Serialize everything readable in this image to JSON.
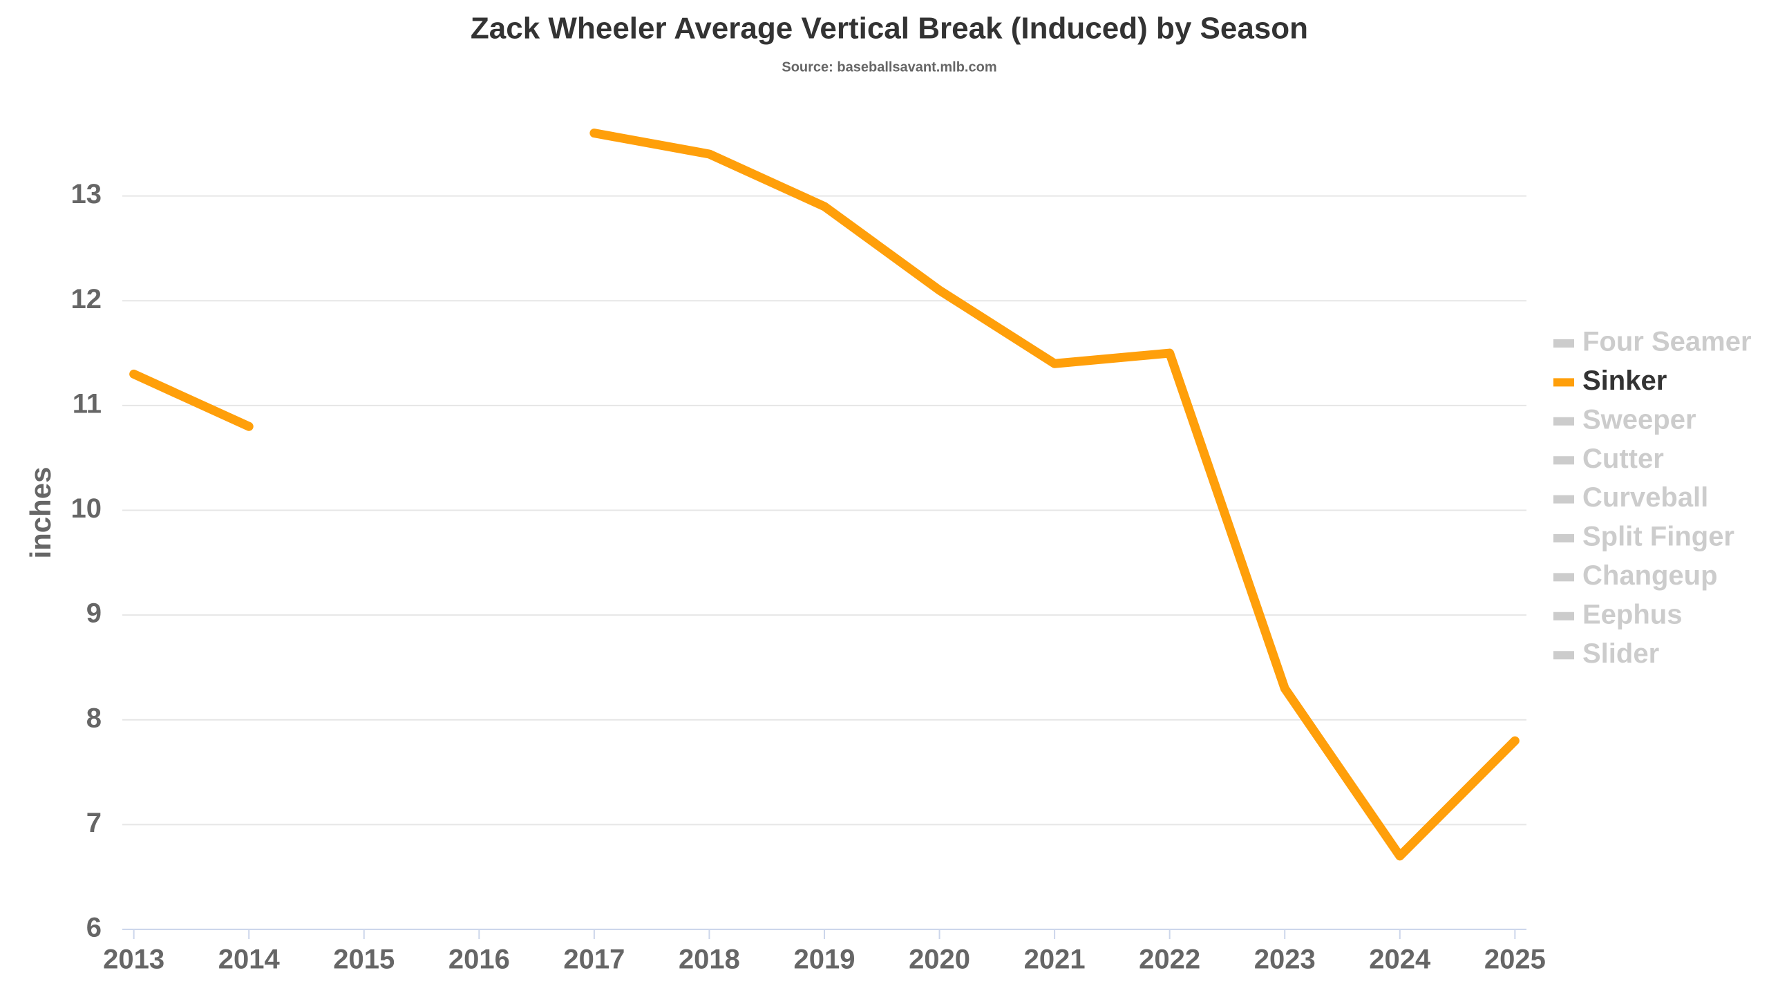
{
  "chart_data": {
    "type": "line",
    "title": "Zack Wheeler Average Vertical Break (Induced) by Season",
    "subtitle": "Source: baseballsavant.mlb.com",
    "y_label": "inches",
    "x": [
      2013,
      2014,
      2015,
      2016,
      2017,
      2018,
      2019,
      2020,
      2021,
      2022,
      2023,
      2024,
      2025
    ],
    "xlim": [
      2012.9,
      2025.1
    ],
    "xticks": [
      2013,
      2014,
      2015,
      2016,
      2017,
      2018,
      2019,
      2020,
      2021,
      2022,
      2023,
      2024,
      2025
    ],
    "ylim": [
      6,
      14
    ],
    "yticks": [
      6,
      7,
      8,
      9,
      10,
      11,
      12,
      13
    ],
    "grid": true,
    "legend": "right",
    "hidden_color": "#cccccc",
    "series": [
      {
        "name": "Four Seamer",
        "visible": false,
        "values": [
          null,
          null,
          null,
          null,
          null,
          null,
          null,
          null,
          null,
          null,
          null,
          null,
          null
        ]
      },
      {
        "name": "Sinker",
        "visible": true,
        "color": "#ff9f0a",
        "values": [
          11.3,
          10.8,
          null,
          null,
          13.6,
          13.4,
          12.9,
          12.1,
          11.4,
          11.5,
          8.3,
          6.7,
          7.8
        ]
      },
      {
        "name": "Sweeper",
        "visible": false,
        "values": [
          null,
          null,
          null,
          null,
          null,
          null,
          null,
          null,
          null,
          null,
          null,
          null,
          null
        ]
      },
      {
        "name": "Cutter",
        "visible": false,
        "values": [
          null,
          null,
          null,
          null,
          null,
          null,
          null,
          null,
          null,
          null,
          null,
          null,
          null
        ]
      },
      {
        "name": "Curveball",
        "visible": false,
        "values": [
          null,
          null,
          null,
          null,
          null,
          null,
          null,
          null,
          null,
          null,
          null,
          null,
          null
        ]
      },
      {
        "name": "Split Finger",
        "visible": false,
        "values": [
          null,
          null,
          null,
          null,
          null,
          null,
          null,
          null,
          null,
          null,
          null,
          null,
          null
        ]
      },
      {
        "name": "Changeup",
        "visible": false,
        "values": [
          null,
          null,
          null,
          null,
          null,
          null,
          null,
          null,
          null,
          null,
          null,
          null,
          null
        ]
      },
      {
        "name": "Eephus",
        "visible": false,
        "values": [
          null,
          null,
          null,
          null,
          null,
          null,
          null,
          null,
          null,
          null,
          null,
          null,
          null
        ]
      },
      {
        "name": "Slider",
        "visible": false,
        "values": [
          null,
          null,
          null,
          null,
          null,
          null,
          null,
          null,
          null,
          null,
          null,
          null,
          null
        ]
      }
    ]
  }
}
